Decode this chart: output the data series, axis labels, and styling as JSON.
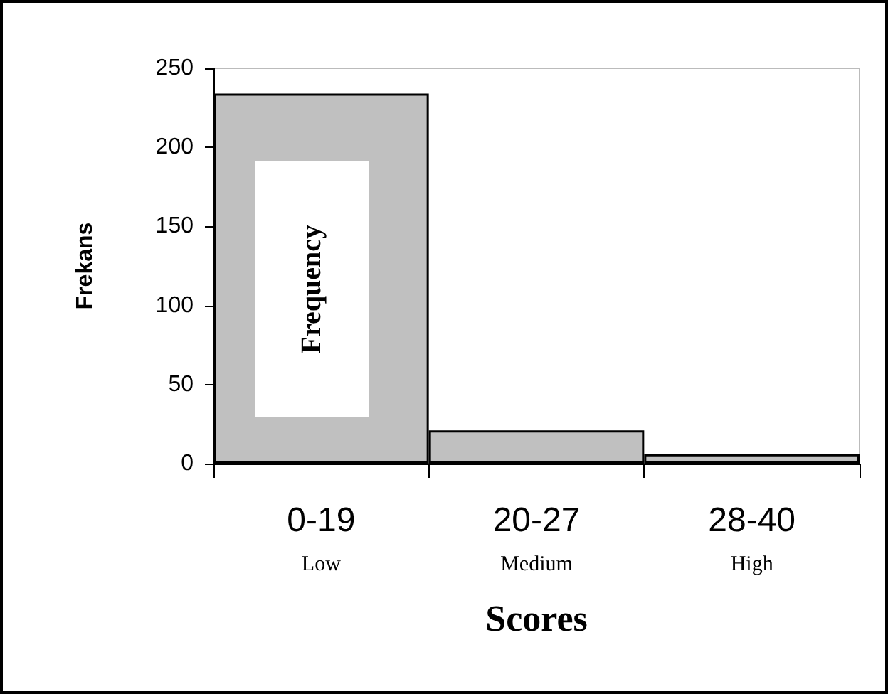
{
  "chart_data": {
    "type": "bar",
    "xlabel": "Scores",
    "ylabel": "Frekans",
    "categories": [
      "0-19\nLow",
      "20-27\nMedium",
      "28-40\nHigh"
    ],
    "values": [
      234,
      21,
      6
    ],
    "color": "#c0c0c0",
    "ylim": [
      0,
      250
    ],
    "yticks": [
      0,
      50,
      100,
      150,
      200,
      250
    ],
    "grid": false,
    "annotations": [
      "Frequency"
    ]
  }
}
